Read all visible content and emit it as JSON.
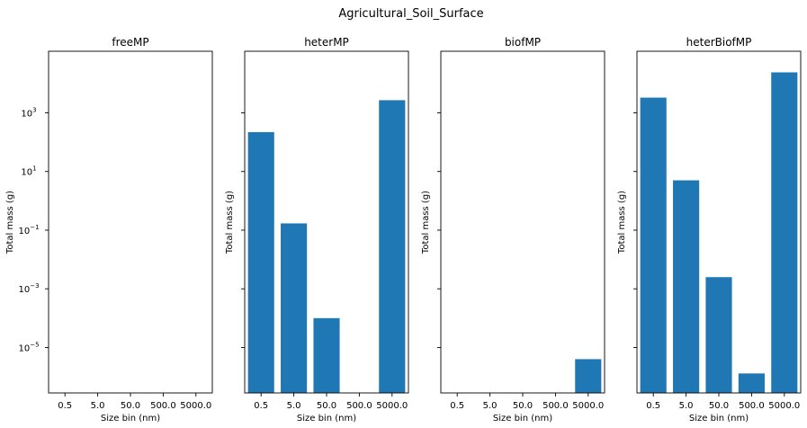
{
  "figure": {
    "suptitle": "Agricultural_Soil_Surface",
    "bar_color": "#1f77b4"
  },
  "chart_data": [
    {
      "type": "bar",
      "title": "freeMP",
      "xlabel": "Size bin (nm)",
      "ylabel": "Total mass (g)",
      "yscale": "log",
      "categories": [
        "0.5",
        "5.0",
        "50.0",
        "500.0",
        "5000.0"
      ],
      "values": [
        null,
        null,
        null,
        null,
        null
      ],
      "ytick_labels": [
        {
          "base": "10",
          "exp": "3",
          "value": 1000
        },
        {
          "base": "10",
          "exp": "1",
          "value": 10
        },
        {
          "base": "10",
          "exp": "−1",
          "value": 0.1
        },
        {
          "base": "10",
          "exp": "−3",
          "value": 0.001
        },
        {
          "base": "10",
          "exp": "−5",
          "value": 1e-05
        }
      ]
    },
    {
      "type": "bar",
      "title": "heterMP",
      "xlabel": "Size bin (nm)",
      "ylabel": "Total mass (g)",
      "yscale": "log",
      "categories": [
        "0.5",
        "5.0",
        "50.0",
        "500.0",
        "5000.0"
      ],
      "values": [
        220,
        0.17,
        0.0001,
        null,
        2700
      ]
    },
    {
      "type": "bar",
      "title": "biofMP",
      "xlabel": "Size bin (nm)",
      "ylabel": "Total mass (g)",
      "yscale": "log",
      "categories": [
        "0.5",
        "5.0",
        "50.0",
        "500.0",
        "5000.0"
      ],
      "values": [
        null,
        null,
        null,
        null,
        4e-06
      ]
    },
    {
      "type": "bar",
      "title": "heterBiofMP",
      "xlabel": "Size bin (nm)",
      "ylabel": "Total mass (g)",
      "yscale": "log",
      "categories": [
        "0.5",
        "5.0",
        "50.0",
        "500.0",
        "5000.0"
      ],
      "values": [
        3300,
        5,
        0.0025,
        1.3e-06,
        24000
      ]
    }
  ]
}
